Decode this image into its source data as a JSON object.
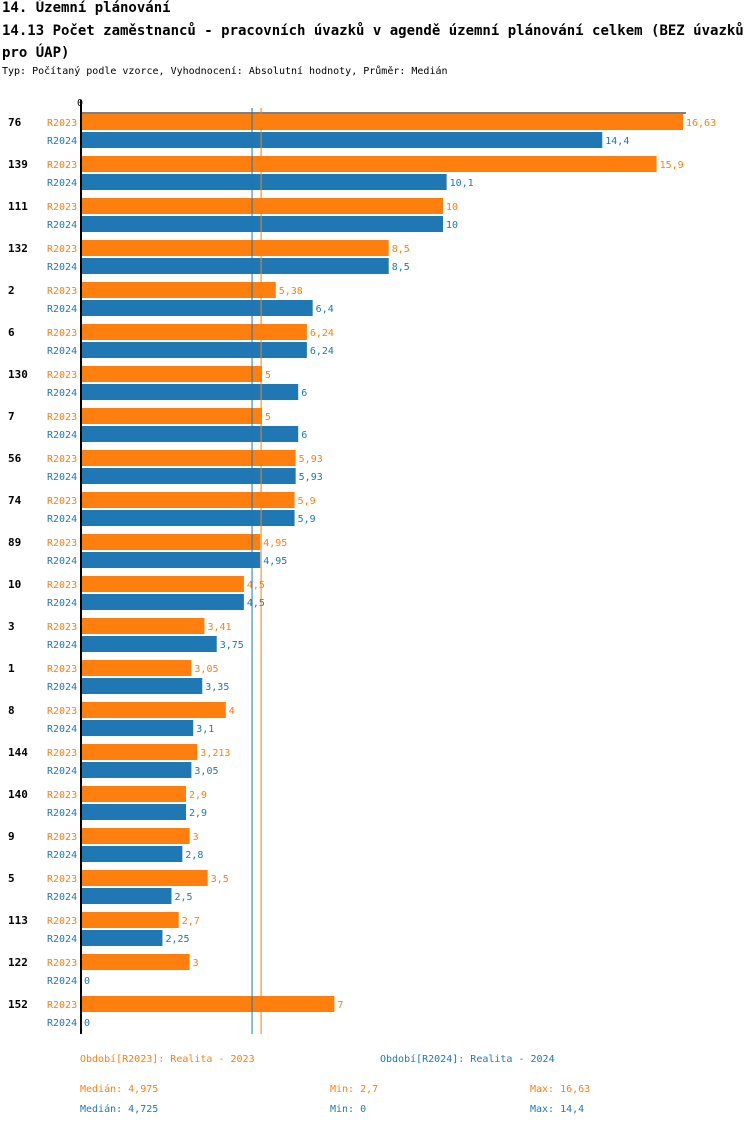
{
  "header": {
    "section": "14. Územní plánování",
    "title": "14.13 Počet zaměstnanců - pracovních úvazků v agendě územní plánování celkem (BEZ úvazků pro ÚAP)",
    "subtitle": "Typ: Počítaný podle vzorce, Vyhodnocení: Absolutní hodnoty, Průměr: Medián"
  },
  "colors": {
    "r2023": "#ff7f0e",
    "r2024": "#1f77b4"
  },
  "chart_data": {
    "type": "bar",
    "orientation": "horizontal",
    "axis_zero_label": "0",
    "xlim": [
      0,
      16.63
    ],
    "series_names": [
      "R2023",
      "R2024"
    ],
    "categories": [
      {
        "id": "76",
        "r2023": 16.63,
        "r2023_label": "16,63",
        "r2024": 14.4,
        "r2024_label": "14,4"
      },
      {
        "id": "139",
        "r2023": 15.9,
        "r2023_label": "15,9",
        "r2024": 10.1,
        "r2024_label": "10,1"
      },
      {
        "id": "111",
        "r2023": 10,
        "r2023_label": "10",
        "r2024": 10,
        "r2024_label": "10"
      },
      {
        "id": "132",
        "r2023": 8.5,
        "r2023_label": "8,5",
        "r2024": 8.5,
        "r2024_label": "8,5"
      },
      {
        "id": "2",
        "r2023": 5.38,
        "r2023_label": "5,38",
        "r2024": 6.4,
        "r2024_label": "6,4"
      },
      {
        "id": "6",
        "r2023": 6.24,
        "r2023_label": "6,24",
        "r2024": 6.24,
        "r2024_label": "6,24"
      },
      {
        "id": "130",
        "r2023": 5,
        "r2023_label": "5",
        "r2024": 6,
        "r2024_label": "6"
      },
      {
        "id": "7",
        "r2023": 5,
        "r2023_label": "5",
        "r2024": 6,
        "r2024_label": "6"
      },
      {
        "id": "56",
        "r2023": 5.93,
        "r2023_label": "5,93",
        "r2024": 5.93,
        "r2024_label": "5,93"
      },
      {
        "id": "74",
        "r2023": 5.9,
        "r2023_label": "5,9",
        "r2024": 5.9,
        "r2024_label": "5,9"
      },
      {
        "id": "89",
        "r2023": 4.95,
        "r2023_label": "4,95",
        "r2024": 4.95,
        "r2024_label": "4,95"
      },
      {
        "id": "10",
        "r2023": 4.5,
        "r2023_label": "4,5",
        "r2024": 4.5,
        "r2024_label": "4,5"
      },
      {
        "id": "3",
        "r2023": 3.41,
        "r2023_label": "3,41",
        "r2024": 3.75,
        "r2024_label": "3,75"
      },
      {
        "id": "1",
        "r2023": 3.05,
        "r2023_label": "3,05",
        "r2024": 3.35,
        "r2024_label": "3,35"
      },
      {
        "id": "8",
        "r2023": 4,
        "r2023_label": "4",
        "r2024": 3.1,
        "r2024_label": "3,1"
      },
      {
        "id": "144",
        "r2023": 3.213,
        "r2023_label": "3,213",
        "r2024": 3.05,
        "r2024_label": "3,05"
      },
      {
        "id": "140",
        "r2023": 2.9,
        "r2023_label": "2,9",
        "r2024": 2.9,
        "r2024_label": "2,9"
      },
      {
        "id": "9",
        "r2023": 3,
        "r2023_label": "3",
        "r2024": 2.8,
        "r2024_label": "2,8"
      },
      {
        "id": "5",
        "r2023": 3.5,
        "r2023_label": "3,5",
        "r2024": 2.5,
        "r2024_label": "2,5"
      },
      {
        "id": "113",
        "r2023": 2.7,
        "r2023_label": "2,7",
        "r2024": 2.25,
        "r2024_label": "2,25"
      },
      {
        "id": "122",
        "r2023": 3,
        "r2023_label": "3",
        "r2024": 0,
        "r2024_label": "0"
      },
      {
        "id": "152",
        "r2023": 7,
        "r2023_label": "7",
        "r2024": 0,
        "r2024_label": "0"
      }
    ],
    "median_lines": {
      "r2023": 4.975,
      "r2024": 4.725
    }
  },
  "legend": {
    "r2023": "Období[R2023]: Realita - 2023",
    "r2024": "Období[R2024]: Realita - 2024"
  },
  "stats": {
    "r2023": {
      "median": "Medián: 4,975",
      "min": "Min: 2,7",
      "max": "Max: 16,63"
    },
    "r2024": {
      "median": "Medián: 4,725",
      "min": "Min: 0",
      "max": "Max: 14,4"
    }
  }
}
